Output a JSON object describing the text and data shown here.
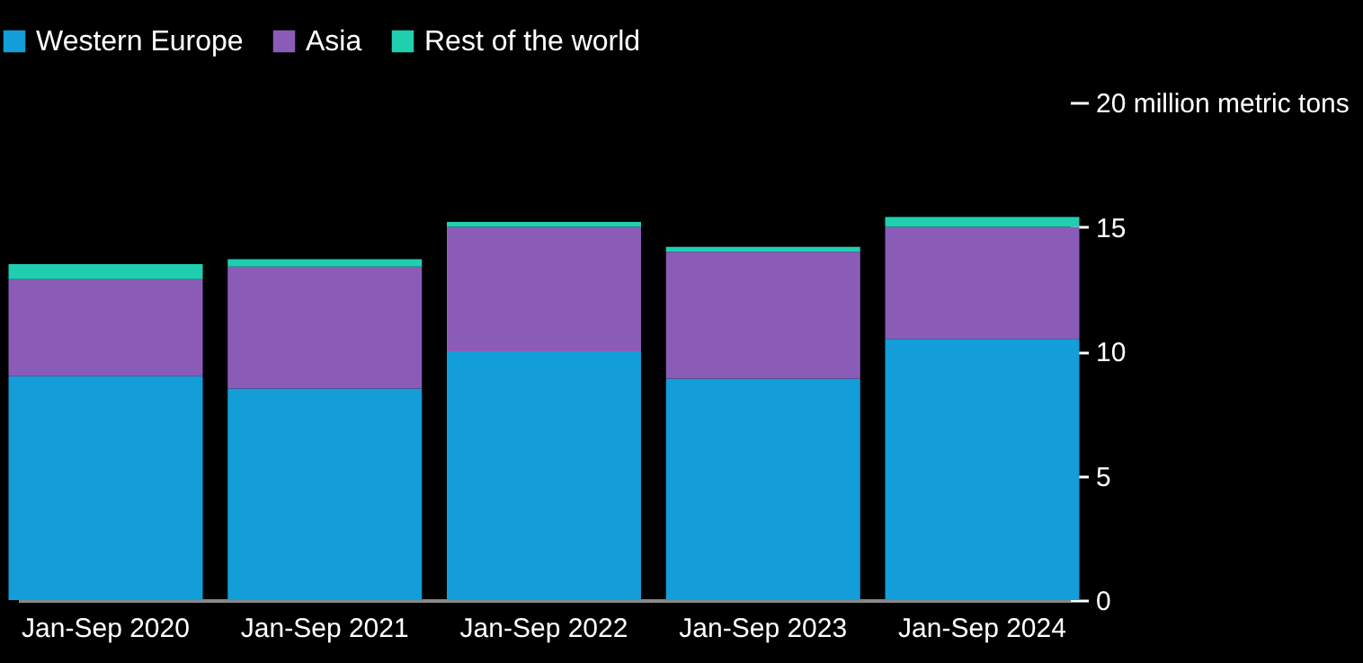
{
  "chart_data": {
    "type": "bar",
    "stacked": true,
    "legend": "top left",
    "grid": false,
    "categories": [
      "Jan-Sep 2020",
      "Jan-Sep 2021",
      "Jan-Sep 2022",
      "Jan-Sep 2023",
      "Jan-Sep 2024"
    ],
    "series": [
      {
        "name": "Western Europe",
        "color": "#139dd9",
        "values": [
          9.0,
          8.5,
          10.0,
          8.9,
          10.5
        ]
      },
      {
        "name": "Asia",
        "color": "#8a5cb8",
        "values": [
          3.9,
          4.9,
          5.0,
          5.1,
          4.5
        ]
      },
      {
        "name": "Rest of the world",
        "color": "#1fcfb0",
        "values": [
          0.6,
          0.3,
          0.2,
          0.2,
          0.4
        ]
      }
    ],
    "ylim": [
      0,
      20
    ],
    "yticks": [
      0,
      5,
      10,
      15,
      {
        "value": 20,
        "label": "20 million metric tons"
      }
    ]
  }
}
